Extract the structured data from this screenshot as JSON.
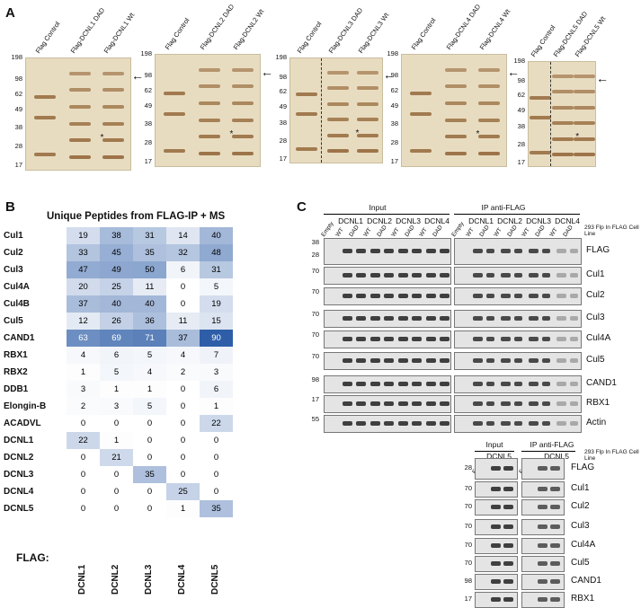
{
  "panel_letters": {
    "a": "A",
    "b": "B",
    "c": "C"
  },
  "panel_a": {
    "gels": [
      {
        "lanes": [
          "Flag Control",
          "Flag-DCNL1 DAD",
          "Flag-DCNL1 Wt"
        ],
        "mw": [
          "198",
          "98",
          "62",
          "49",
          "38",
          "28",
          "17"
        ]
      },
      {
        "lanes": [
          "Flag Control",
          "Flag-DCNL2 DAD",
          "Flag-DCNL2 Wt"
        ],
        "mw": [
          "198",
          "98",
          "62",
          "49",
          "38",
          "28",
          "17"
        ]
      },
      {
        "lanes": [
          "Flag Control",
          "Flag-DCNL3 DAD",
          "Flag-DCNL3 Wt"
        ],
        "mw": [
          "198",
          "98",
          "62",
          "49",
          "38",
          "28",
          "17"
        ]
      },
      {
        "lanes": [
          "Flag Control",
          "Flag-DCNL4 DAD",
          "Flag-DCNL4 Wt"
        ],
        "mw": [
          "198",
          "98",
          "62",
          "49",
          "38",
          "28",
          "17"
        ]
      },
      {
        "lanes": [
          "Flag Control",
          "Flag-DCNL5 DAD",
          "Flag-DCNL5 Wt"
        ],
        "mw": [
          "198",
          "98",
          "62",
          "49",
          "38",
          "28",
          "17"
        ]
      }
    ],
    "star": "*",
    "arrow": "←"
  },
  "panel_b": {
    "title": "Unique Peptides from FLAG-IP + MS",
    "flag_label": "FLAG:",
    "columns": [
      "DCNL1",
      "DCNL2",
      "DCNL3",
      "DCNL4",
      "DCNL5"
    ],
    "rows": [
      {
        "name": "Cul1",
        "values": [
          19,
          38,
          31,
          14,
          40
        ]
      },
      {
        "name": "Cul2",
        "values": [
          33,
          45,
          35,
          32,
          48
        ]
      },
      {
        "name": "Cul3",
        "values": [
          47,
          49,
          50,
          6,
          31
        ]
      },
      {
        "name": "Cul4A",
        "values": [
          20,
          25,
          11,
          0,
          5
        ]
      },
      {
        "name": "Cul4B",
        "values": [
          37,
          40,
          40,
          0,
          19
        ]
      },
      {
        "name": "Cul5",
        "values": [
          12,
          26,
          36,
          11,
          15
        ]
      },
      {
        "name": "CAND1",
        "values": [
          63,
          69,
          71,
          37,
          90
        ]
      },
      {
        "name": "RBX1",
        "values": [
          4,
          6,
          5,
          4,
          7
        ]
      },
      {
        "name": "RBX2",
        "values": [
          1,
          5,
          4,
          2,
          3
        ]
      },
      {
        "name": "DDB1",
        "values": [
          3,
          1,
          1,
          0,
          6
        ]
      },
      {
        "name": "Elongin-B",
        "values": [
          2,
          3,
          5,
          0,
          1
        ]
      },
      {
        "name": "ACADVL",
        "values": [
          0,
          0,
          0,
          0,
          22
        ]
      },
      {
        "name": "DCNL1",
        "values": [
          22,
          1,
          0,
          0,
          0
        ]
      },
      {
        "name": "DCNL2",
        "values": [
          0,
          21,
          0,
          0,
          0
        ]
      },
      {
        "name": "DCNL3",
        "values": [
          0,
          0,
          35,
          0,
          0
        ]
      },
      {
        "name": "DCNL4",
        "values": [
          0,
          0,
          0,
          25,
          0
        ]
      },
      {
        "name": "DCNL5",
        "values": [
          0,
          0,
          0,
          1,
          35
        ]
      }
    ]
  },
  "panel_c_top": {
    "input_label": "Input",
    "ip_label": "IP anti-FLAG",
    "groups": [
      "DCNL1",
      "DCNL2",
      "DCNL3",
      "DCNL4"
    ],
    "lanes": [
      "Empty",
      "WT",
      "DAD",
      "WT",
      "DAD",
      "WT",
      "DAD",
      "WT",
      "DAD"
    ],
    "cell_line": "293 Flp In FLAG Cell Line",
    "rows": [
      {
        "label": "FLAG",
        "mw": [
          "38",
          "28"
        ]
      },
      {
        "label": "Cul1",
        "mw": [
          "70"
        ]
      },
      {
        "label": "Cul2",
        "mw": [
          "70"
        ]
      },
      {
        "label": "Cul3",
        "mw": [
          "70"
        ]
      },
      {
        "label": "Cul4A",
        "mw": [
          "70"
        ]
      },
      {
        "label": "Cul5",
        "mw": [
          "70"
        ]
      },
      {
        "label": "CAND1",
        "mw": [
          "98"
        ]
      },
      {
        "label": "RBX1",
        "mw": [
          "17"
        ]
      },
      {
        "label": "Actin",
        "mw": [
          "55"
        ]
      }
    ]
  },
  "panel_c_bottom": {
    "input_label": "Input",
    "ip_label": "IP anti-FLAG",
    "group": "DCNL5",
    "lanes": [
      "Empty",
      "WT",
      "DAD"
    ],
    "cell_line": "293 Flp In FLAG Cell Line",
    "rows": [
      {
        "label": "FLAG",
        "mw": "28"
      },
      {
        "label": "Cul1",
        "mw": "70"
      },
      {
        "label": "Cul2",
        "mw": "70"
      },
      {
        "label": "Cul3",
        "mw": "70"
      },
      {
        "label": "Cul4A",
        "mw": "70"
      },
      {
        "label": "Cul5",
        "mw": "70"
      },
      {
        "label": "CAND1",
        "mw": "98"
      },
      {
        "label": "RBX1",
        "mw": "17"
      }
    ]
  },
  "colors": {
    "heat_max": "#2f5ea8",
    "heat_min": "#ffffff",
    "gel_bg": "#e8dcc0",
    "band": "#8a5a2a"
  }
}
